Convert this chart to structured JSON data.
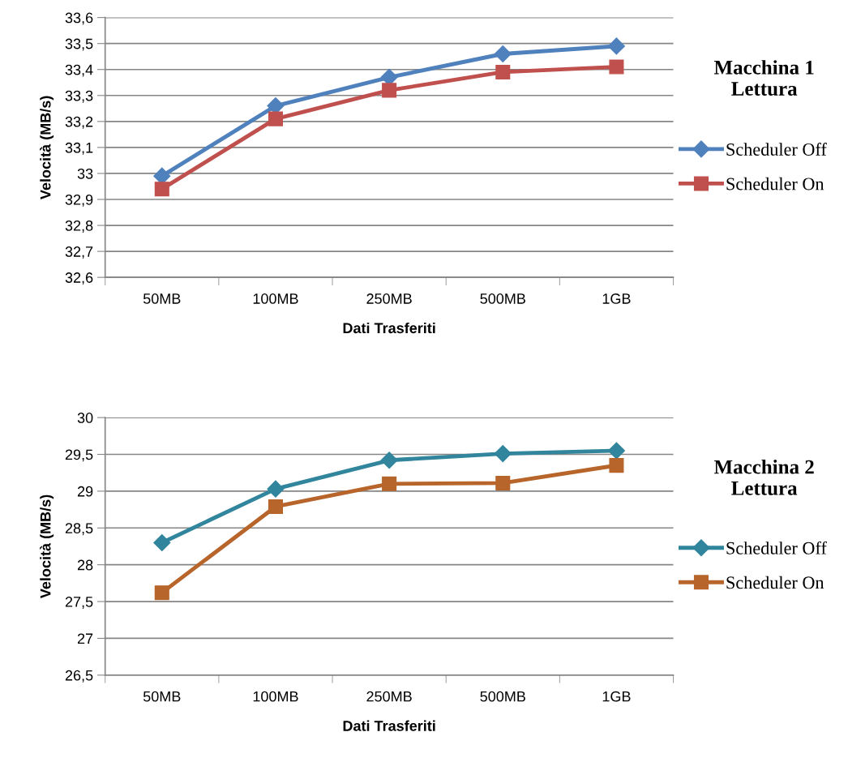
{
  "chart_data": [
    {
      "type": "line",
      "annotations": [
        "Macchina 1\nLettura"
      ],
      "xlabel": "Dati Trasferiti",
      "ylabel": "Velocità (MB/s)",
      "categories": [
        "50MB",
        "100MB",
        "250MB",
        "500MB",
        "1GB"
      ],
      "series": [
        {
          "name": "Scheduler Off",
          "color": "#4f81bd",
          "marker": "diamond",
          "values": [
            32.99,
            33.26,
            33.37,
            33.46,
            33.49
          ]
        },
        {
          "name": "Scheduler On",
          "color": "#c0504d",
          "marker": "square",
          "values": [
            32.94,
            33.21,
            33.32,
            33.39,
            33.41
          ]
        }
      ],
      "ylim": [
        32.6,
        33.6
      ],
      "yticks": [
        {
          "value": 32.6,
          "label": "32,6"
        },
        {
          "value": 32.7,
          "label": "32,7"
        },
        {
          "value": 32.8,
          "label": "32,8"
        },
        {
          "value": 32.9,
          "label": "32,9"
        },
        33,
        {
          "value": 33.1,
          "label": "33,1"
        },
        {
          "value": 33.2,
          "label": "33,2"
        },
        {
          "value": 33.3,
          "label": "33,3"
        },
        {
          "value": 33.4,
          "label": "33,4"
        },
        {
          "value": 33.5,
          "label": "33,5"
        },
        {
          "value": 33.6,
          "label": "33,6"
        }
      ],
      "grid": "y",
      "legend": "right",
      "line_style": "solid"
    },
    {
      "type": "line",
      "annotations": [
        "Macchina 2\nLettura"
      ],
      "xlabel": "Dati Trasferiti",
      "ylabel": "Velocità (MB/s)",
      "categories": [
        "50MB",
        "100MB",
        "250MB",
        "500MB",
        "1GB"
      ],
      "series": [
        {
          "name": "Scheduler Off",
          "color": "#31859c",
          "marker": "diamond",
          "values": [
            28.3,
            29.03,
            29.42,
            29.51,
            29.55
          ]
        },
        {
          "name": "Scheduler On",
          "color": "#b7652b",
          "marker": "square",
          "values": [
            27.62,
            28.79,
            29.1,
            29.11,
            29.35
          ]
        }
      ],
      "ylim": [
        26.5,
        30
      ],
      "yticks": [
        {
          "value": 26.5,
          "label": "26,5"
        },
        27,
        {
          "value": 27.5,
          "label": "27,5"
        },
        28,
        {
          "value": 28.5,
          "label": "28,5"
        },
        29,
        {
          "value": 29.5,
          "label": "29,5"
        },
        30
      ],
      "grid": "y",
      "legend": "right",
      "line_style": "solid"
    }
  ]
}
